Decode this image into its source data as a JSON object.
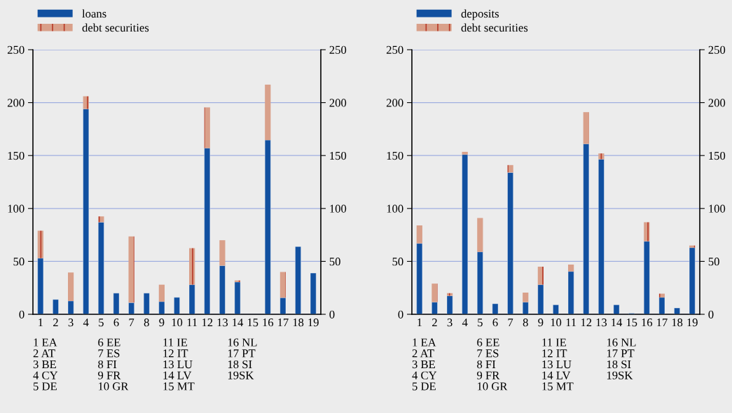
{
  "chart_data": [
    {
      "type": "bar",
      "stacked": true,
      "categories": [
        "1",
        "2",
        "3",
        "4",
        "5",
        "6",
        "7",
        "8",
        "9",
        "10",
        "11",
        "12",
        "13",
        "14",
        "15",
        "16",
        "17",
        "18",
        "19"
      ],
      "series": [
        {
          "name": "loans",
          "color": "#1150a0",
          "values": [
            53,
            14,
            12.6,
            194,
            87,
            20,
            11,
            20,
            12,
            16,
            28,
            157,
            46,
            30.5,
            null,
            164.6,
            15.7,
            64,
            39
          ]
        },
        {
          "name": "debt securities",
          "color": "#d9a08a",
          "values": [
            26,
            0,
            26.9,
            12,
            5.5,
            0,
            62.5,
            0,
            16,
            0,
            34.5,
            38.5,
            24,
            1.5,
            null,
            52.4,
            24.3,
            0,
            0
          ]
        }
      ],
      "ylim": [
        0,
        250
      ],
      "yticks": [
        0,
        50,
        100,
        150,
        200,
        250
      ],
      "y2lim": [
        0,
        250
      ],
      "y2ticks": [
        0,
        50,
        100,
        150,
        200,
        250
      ],
      "grid": true,
      "legend": "top left",
      "annotations": [
        "1 EA\n2 AT\n3 BE\n4 CY\n5 DE",
        "6 EE\n7 ES\n8 FI\n9 FR\n10 GR",
        "11 IE\n12 IT\n13 LU\n14 LV\n15 MT",
        "16 NL\n17 PT\n18 SI\n19SK"
      ]
    },
    {
      "type": "bar",
      "stacked": true,
      "categories": [
        "1",
        "2",
        "3",
        "4",
        "5",
        "6",
        "7",
        "8",
        "9",
        "10",
        "11",
        "12",
        "13",
        "14",
        "15",
        "16",
        "17",
        "18",
        "19"
      ],
      "series": [
        {
          "name": "deposits",
          "color": "#1150a0",
          "values": [
            67,
            11.5,
            17.5,
            151,
            59,
            10,
            134,
            11.5,
            28,
            9,
            40.5,
            161,
            146.5,
            9,
            1,
            69,
            16,
            6,
            63
          ]
        },
        {
          "name": "debt securities",
          "color": "#d9a08a",
          "values": [
            17,
            17.5,
            2.5,
            2.5,
            32,
            0,
            7,
            9,
            17,
            0,
            6.5,
            30,
            5.5,
            0,
            null,
            18,
            3.5,
            0,
            2
          ]
        }
      ],
      "ylim": [
        0,
        250
      ],
      "yticks": [
        0,
        50,
        100,
        150,
        200,
        250
      ],
      "y2lim": [
        0,
        250
      ],
      "y2ticks": [
        0,
        50,
        100,
        150,
        200,
        250
      ],
      "grid": true,
      "legend": "top left",
      "annotations": [
        "1 EA\n2 AT\n3 BE\n4 CY\n5 DE",
        "6 EE\n7 ES\n8 FI\n9 FR\n10 GR",
        "11 IE\n12 IT\n13 LU\n14 LV\n15 MT",
        "16 NL\n17 PT\n18 SI\n19SK"
      ]
    }
  ]
}
